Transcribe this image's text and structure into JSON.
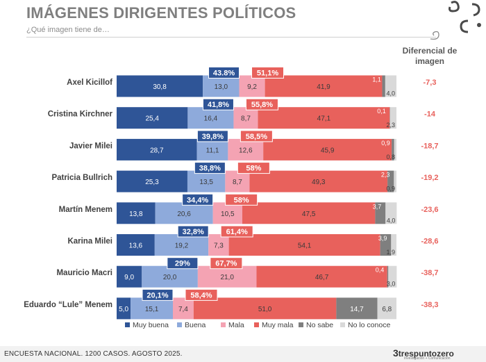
{
  "header": {
    "title": "IMÁGENES DIRIGENTES POLÍTICOS",
    "subtitle": "¿Qué imagen tiene de…",
    "diff_header": "Diferencial de imagen"
  },
  "footer": {
    "text": "ENCUESTA NACIONAL. 1200 CASOS. AGOSTO 2025.",
    "brand": "trespuntozero",
    "brand_tagline": "Investigación + Comunicación"
  },
  "chart_data": {
    "type": "bar",
    "orientation": "horizontal",
    "stacked": true,
    "xlim": [
      0,
      100
    ],
    "legend": "bottom",
    "grid": false,
    "categories": [
      "Axel Kicillof",
      "Cristina Kirchner",
      "Javier Milei",
      "Patricia Bullrich",
      "Martín Menem",
      "Karina Milei",
      "Mauricio Macri",
      "Eduardo “Lule” Menem"
    ],
    "series": [
      {
        "name": "Muy buena",
        "color": "#2f5597",
        "values": [
          30.8,
          25.4,
          28.7,
          25.3,
          13.8,
          13.6,
          9.0,
          5.0
        ],
        "labels": [
          "30,8",
          "25,4",
          "28,7",
          "25,3",
          "13,8",
          "13,6",
          "9,0",
          "5,0"
        ]
      },
      {
        "name": "Buena",
        "color": "#8eaadb",
        "values": [
          13.0,
          16.4,
          11.1,
          13.5,
          20.6,
          19.2,
          20.0,
          15.1
        ],
        "labels": [
          "13,0",
          "16,4",
          "11,1",
          "13,5",
          "20,6",
          "19,2",
          "20,0",
          "15,1"
        ]
      },
      {
        "name": "Mala",
        "color": "#f4a3b3",
        "values": [
          9.2,
          8.7,
          12.6,
          8.7,
          10.5,
          7.3,
          21.0,
          7.4
        ],
        "labels": [
          "9,2",
          "8,7",
          "12,6",
          "8,7",
          "10,5",
          "7,3",
          "21,0",
          "7,4"
        ]
      },
      {
        "name": "Muy mala",
        "color": "#e8615c",
        "values": [
          41.9,
          47.1,
          45.9,
          49.3,
          47.5,
          54.1,
          46.7,
          51.0
        ],
        "labels": [
          "41,9",
          "47,1",
          "45,9",
          "49,3",
          "47,5",
          "54,1",
          "46,7",
          "51,0"
        ]
      },
      {
        "name": "No  sabe",
        "color": "#7f7f7f",
        "values": [
          1.1,
          0.1,
          0.9,
          2.3,
          3.7,
          3.9,
          0.4,
          14.7
        ],
        "labels": [
          "1,1",
          "0,1",
          "0,9",
          "2,3",
          "3,7",
          "3,9",
          "0,4",
          "14,7"
        ]
      },
      {
        "name": "No lo conoce",
        "color": "#d9d9d9",
        "values": [
          4.0,
          2.3,
          0.8,
          0.9,
          4.0,
          1.9,
          3.0,
          6.8
        ],
        "labels": [
          "4,0",
          "2,3",
          "0,8",
          "0,9",
          "4,0",
          "1,9",
          "3,0",
          "6,8"
        ]
      }
    ],
    "positive_totals": [
      "43.8%",
      "41,8%",
      "39,8%",
      "38,8%",
      "34,4%",
      "32,8%",
      "29%",
      "20,1%"
    ],
    "negative_totals": [
      "51,1%",
      "55,8%",
      "58,5%",
      "58%",
      "58%",
      "61,4%",
      "67,7%",
      "58,4%"
    ],
    "differential": [
      "-7,3",
      "-14",
      "-18,7",
      "-19,2",
      "-23,6",
      "-28,6",
      "-38,7",
      "-38,3"
    ]
  },
  "colors": {
    "positive_box": "#2f5597",
    "negative_box": "#e8615c",
    "differential_text": "#e8615c",
    "category_text": "#404040"
  }
}
